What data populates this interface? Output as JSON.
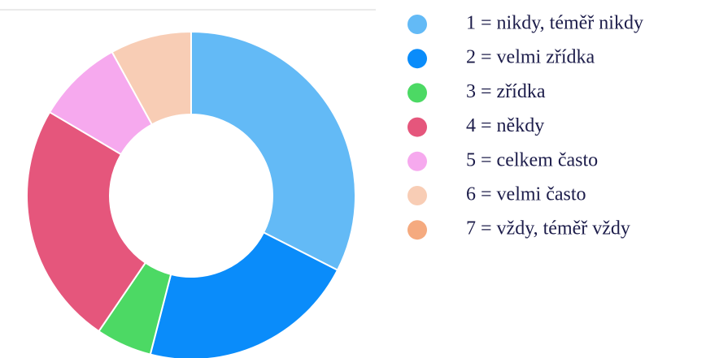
{
  "chart_data": {
    "type": "donut",
    "categories": [
      "1 = nikdy, téměř nikdy",
      "2 = velmi zřídka",
      "3 = zřídka",
      "4 = někdy",
      "5 = celkem často",
      "6 = velmi často",
      "7 = vždy, téměř vždy"
    ],
    "values": [
      32.5,
      21.5,
      5.5,
      24,
      8.5,
      8,
      0
    ],
    "colors": [
      "#63baf6",
      "#0a8cfa",
      "#4cd964",
      "#e5567c",
      "#f6a9ee",
      "#f8cdb5",
      "#f5aa7f"
    ],
    "legend": "right"
  }
}
